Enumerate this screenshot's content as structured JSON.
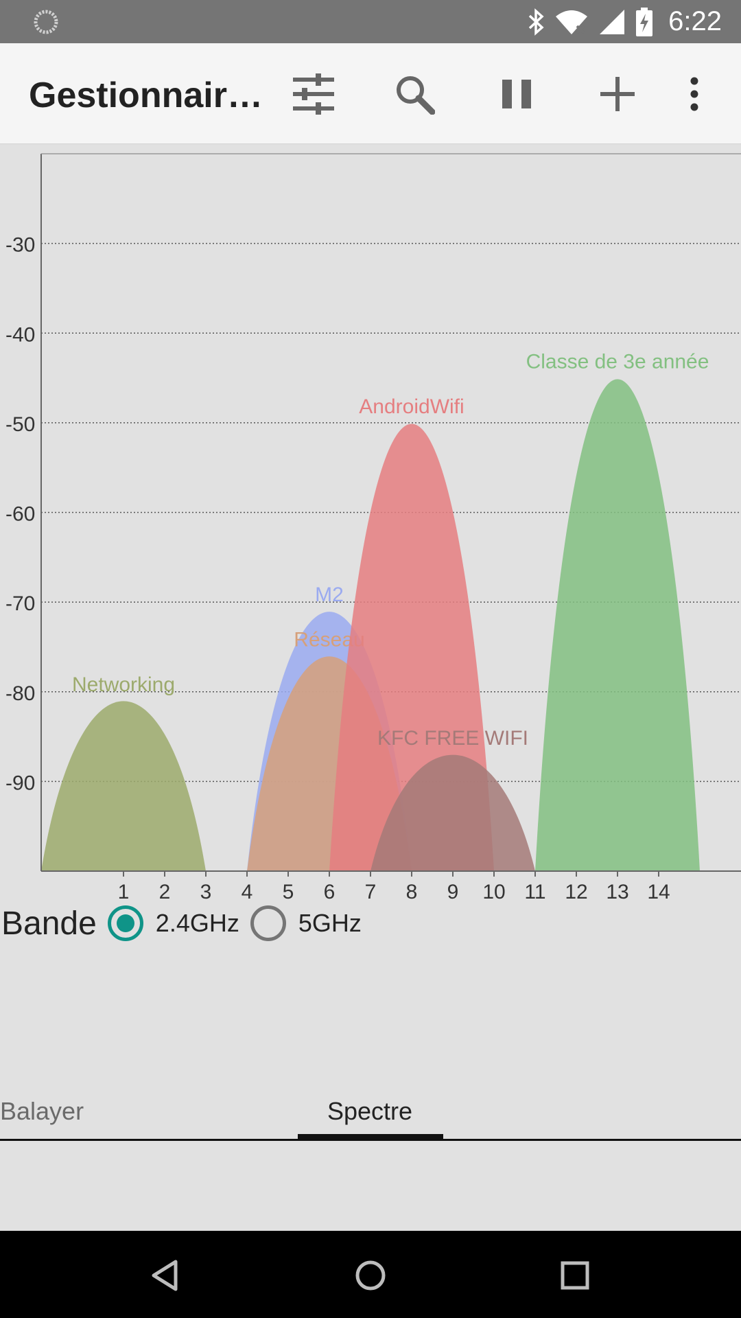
{
  "status_bar": {
    "time": "6:22",
    "icons": [
      "sync-icon",
      "bluetooth-icon",
      "wifi-icon",
      "cell-signal-icon",
      "battery-charging-icon"
    ]
  },
  "app_bar": {
    "title": "Gestionnair…",
    "actions": [
      "filter-sliders-icon",
      "search-icon",
      "pause-icon",
      "add-icon",
      "overflow-menu-icon"
    ]
  },
  "band": {
    "label": "Bande",
    "options": [
      {
        "label": "2.4GHz",
        "selected": true
      },
      {
        "label": "5GHz",
        "selected": false
      }
    ]
  },
  "tabs": [
    {
      "label": "Balayer",
      "active": false
    },
    {
      "label": "Spectre",
      "active": true
    }
  ],
  "nav_bar": {
    "buttons": [
      "back-icon",
      "home-icon",
      "recents-icon"
    ]
  },
  "chart_data": {
    "type": "area",
    "title": "",
    "xlabel": "",
    "ylabel": "",
    "x_ticks": [
      1,
      2,
      3,
      4,
      5,
      6,
      7,
      8,
      9,
      10,
      11,
      12,
      13,
      14
    ],
    "y_ticks": [
      -30,
      -40,
      -50,
      -60,
      -70,
      -80,
      -90
    ],
    "xlim": [
      -1,
      16
    ],
    "ylim": [
      -100,
      -20
    ],
    "grid": "horizontal-dotted",
    "series": [
      {
        "name": "Networking",
        "channel": 1,
        "level": -81,
        "color": "#9caa6c"
      },
      {
        "name": "M2",
        "channel": 6,
        "level": -71,
        "color": "#9aaaf0"
      },
      {
        "name": "Réseau",
        "channel": 6,
        "level": -76,
        "color": "#d6a07a"
      },
      {
        "name": "AndroidWifi",
        "channel": 8,
        "level": -50,
        "color": "#e57e80"
      },
      {
        "name": "KFC FREE WIFI",
        "channel": 9,
        "level": -87,
        "color": "#a47a78"
      },
      {
        "name": "Classe de 3e année",
        "channel": 13,
        "level": -45,
        "color": "#83c081"
      }
    ]
  }
}
